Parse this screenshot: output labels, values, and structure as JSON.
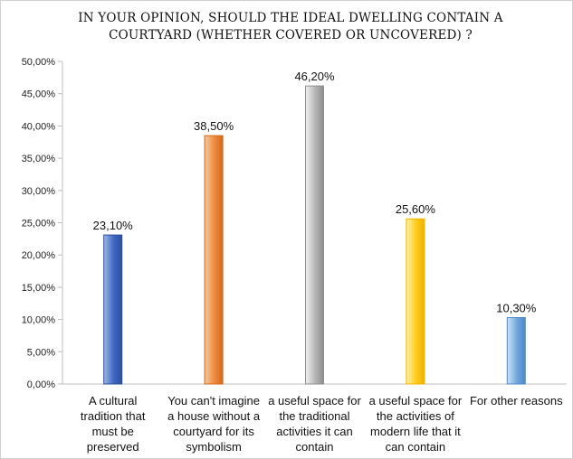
{
  "chart_data": {
    "type": "bar",
    "title": "IN YOUR OPINION, SHOULD THE IDEAL DWELLING CONTAIN A COURTYARD (WHETHER COVERED OR UNCOVERED) ?",
    "title_lines": [
      "IN YOUR OPINION, SHOULD THE IDEAL DWELLING CONTAIN A",
      "COURTYARD (WHETHER COVERED OR UNCOVERED) ?"
    ],
    "categories": [
      "A cultural tradition that must be preserved",
      "You can't imagine a house without a courtyard for its symbolism",
      "a useful space for the traditional activities it can contain",
      "a useful space for the activities of modern life that it can contain",
      "For other reasons"
    ],
    "category_lines": [
      [
        "A cultural",
        "tradition that",
        "must be",
        "preserved"
      ],
      [
        "You can't imagine",
        "a house without a",
        "courtyard for its",
        "symbolism"
      ],
      [
        "a useful space for",
        "the traditional",
        "activities it can",
        "contain"
      ],
      [
        "a useful space for",
        "the activities of",
        "modern life that it",
        "can contain"
      ],
      [
        "For other reasons"
      ]
    ],
    "values": [
      23.1,
      38.5,
      46.2,
      25.6,
      10.3
    ],
    "value_labels": [
      "23,10%",
      "38,50%",
      "46,20%",
      "25,60%",
      "10,30%"
    ],
    "bar_colors": [
      [
        "#9db7e8",
        "#3f67c2",
        "#2b4f9e"
      ],
      [
        "#f8c9a2",
        "#ee8a3c",
        "#d5671a"
      ],
      [
        "#f2f2f2",
        "#b4b4b4",
        "#8e8e8e"
      ],
      [
        "#fff2a8",
        "#ffcc1a",
        "#f2b000"
      ],
      [
        "#cfe3f7",
        "#6fa6db",
        "#4e88c6"
      ]
    ],
    "ylim": [
      0,
      50
    ],
    "yticks": [
      "0,00%",
      "5,00%",
      "10,00%",
      "15,00%",
      "20,00%",
      "25,00%",
      "30,00%",
      "35,00%",
      "40,00%",
      "45,00%",
      "50,00%"
    ],
    "ytick_values": [
      0,
      5,
      10,
      15,
      20,
      25,
      30,
      35,
      40,
      45,
      50
    ],
    "xlabel": "",
    "ylabel": "",
    "grid": false,
    "legend": "none"
  }
}
